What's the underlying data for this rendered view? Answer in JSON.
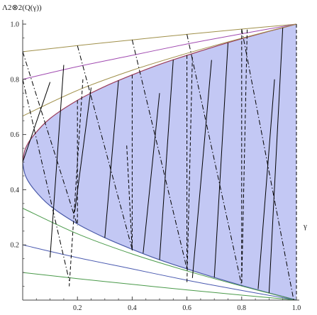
{
  "chart_data": {
    "type": "line",
    "ylabel": "Λ2⊗2(Q(γ))",
    "xlabel": "γ",
    "xlim": [
      0,
      1
    ],
    "ylim": [
      0,
      1
    ],
    "x_ticks": [
      "0.2",
      "0.4",
      "0.6",
      "0.8",
      "1.0"
    ],
    "y_ticks": [
      "0.2",
      "0.4",
      "0.6",
      "0.8",
      "1.0"
    ],
    "grid": false,
    "legend": "none",
    "colors": {
      "region_fill": "#c3c8f4",
      "upper_boundary": "#9a3c5a",
      "lower_boundary": "#4a5aa8",
      "olive": "#a0904a",
      "purple": "#a04ab0",
      "green": "#4a9a4a",
      "blue": "#4a5ab0",
      "black": "#000000"
    },
    "region": {
      "description_free": true,
      "upper_curve": [
        [
          0,
          0.5
        ],
        [
          0.01,
          0.549
        ],
        [
          0.04,
          0.597
        ],
        [
          0.1,
          0.658
        ],
        [
          0.2,
          0.724
        ],
        [
          0.3,
          0.774
        ],
        [
          0.4,
          0.816
        ],
        [
          0.5,
          0.854
        ],
        [
          0.6,
          0.887
        ],
        [
          0.7,
          0.918
        ],
        [
          0.8,
          0.947
        ],
        [
          0.9,
          0.974
        ],
        [
          1.0,
          1.0
        ]
      ],
      "lower_curve": [
        [
          0,
          0.5
        ],
        [
          0.01,
          0.451
        ],
        [
          0.04,
          0.403
        ],
        [
          0.1,
          0.342
        ],
        [
          0.2,
          0.276
        ],
        [
          0.3,
          0.226
        ],
        [
          0.4,
          0.184
        ],
        [
          0.5,
          0.146
        ],
        [
          0.6,
          0.113
        ],
        [
          0.7,
          0.082
        ],
        [
          0.8,
          0.053
        ],
        [
          0.9,
          0.026
        ],
        [
          1.0,
          0.0
        ]
      ]
    },
    "series": [
      {
        "color": "olive",
        "x": [
          0,
          0.2,
          0.4,
          0.6,
          0.8,
          1.0
        ],
        "values": [
          0.9,
          0.922,
          0.943,
          0.963,
          0.982,
          1.0
        ]
      },
      {
        "color": "purple",
        "x": [
          0,
          0.2,
          0.4,
          0.6,
          0.8,
          1.0
        ],
        "values": [
          0.8,
          0.846,
          0.887,
          0.928,
          0.965,
          1.0
        ]
      },
      {
        "color": "olive",
        "x": [
          0,
          0.2,
          0.4,
          0.6,
          0.8,
          1.0
        ],
        "values": [
          0.667,
          0.76,
          0.833,
          0.894,
          0.949,
          1.0
        ]
      },
      {
        "color": "green",
        "x": [
          0,
          0.2,
          0.4,
          0.6,
          0.8,
          1.0
        ],
        "values": [
          0.333,
          0.24,
          0.167,
          0.106,
          0.051,
          0.0
        ]
      },
      {
        "color": "blue",
        "x": [
          0,
          0.2,
          0.4,
          0.6,
          0.8,
          1.0
        ],
        "values": [
          0.2,
          0.154,
          0.113,
          0.072,
          0.035,
          0.0
        ]
      },
      {
        "color": "green",
        "x": [
          0,
          0.2,
          0.4,
          0.6,
          0.8,
          1.0
        ],
        "values": [
          0.1,
          0.078,
          0.057,
          0.037,
          0.018,
          0.0
        ]
      }
    ],
    "chords": [
      {
        "style": "solid",
        "x1": 0.1,
        "y1": 0.154,
        "x2": 0.15,
        "y2": 0.852
      },
      {
        "style": "solid",
        "x1": 0.3,
        "y1": 0.226,
        "x2": 0.35,
        "y2": 0.796
      },
      {
        "style": "solid",
        "x1": 0.5,
        "y1": 0.146,
        "x2": 0.55,
        "y2": 0.871
      },
      {
        "style": "solid",
        "x1": 0.7,
        "y1": 0.082,
        "x2": 0.75,
        "y2": 0.932
      },
      {
        "style": "solid",
        "x1": 0.9,
        "y1": 0.026,
        "x2": 0.95,
        "y2": 0.987
      },
      {
        "style": "solid",
        "x1": 0.0,
        "y1": 0.5,
        "x2": 0.1,
        "y2": 0.79
      },
      {
        "style": "solid",
        "x1": 0.19,
        "y1": 0.32,
        "x2": 0.25,
        "y2": 0.77
      },
      {
        "style": "solid",
        "x1": 0.44,
        "y1": 0.17,
        "x2": 0.5,
        "y2": 0.75
      },
      {
        "style": "solid",
        "x1": 0.62,
        "y1": 0.08,
        "x2": 0.69,
        "y2": 0.87
      },
      {
        "style": "solid",
        "x1": 0.86,
        "y1": 0.04,
        "x2": 0.92,
        "y2": 0.8
      },
      {
        "style": "dashdot",
        "x1": 0.0,
        "y1": 0.9,
        "x2": 0.2,
        "y2": 0.27
      },
      {
        "style": "dashdot",
        "x1": 0.2,
        "y1": 0.922,
        "x2": 0.4,
        "y2": 0.184
      },
      {
        "style": "dashdot",
        "x1": 0.4,
        "y1": 0.943,
        "x2": 0.6,
        "y2": 0.113
      },
      {
        "style": "dashdot",
        "x1": 0.6,
        "y1": 0.963,
        "x2": 0.8,
        "y2": 0.053
      },
      {
        "style": "dashdot",
        "x1": 0.8,
        "y1": 0.982,
        "x2": 0.99,
        "y2": 0.0
      },
      {
        "style": "dashdot",
        "x1": 0.0,
        "y1": 0.8,
        "x2": 0.17,
        "y2": 0.07
      },
      {
        "style": "dashed",
        "x1": 0.0,
        "y1": 0.65,
        "x2": 0.0,
        "y2": 0.35
      },
      {
        "style": "dashed",
        "x1": 0.2,
        "y1": 0.724,
        "x2": 0.2,
        "y2": 0.276
      },
      {
        "style": "dashed",
        "x1": 0.4,
        "y1": 0.816,
        "x2": 0.4,
        "y2": 0.184
      },
      {
        "style": "dashed",
        "x1": 0.6,
        "y1": 0.887,
        "x2": 0.6,
        "y2": 0.113
      },
      {
        "style": "dashed",
        "x1": 0.8,
        "y1": 0.98,
        "x2": 0.8,
        "y2": 0.053
      },
      {
        "style": "dashed",
        "x1": 1.0,
        "y1": 1.0,
        "x2": 1.0,
        "y2": 0.0
      },
      {
        "style": "dashed",
        "x1": 0.22,
        "y1": 0.8,
        "x2": 0.17,
        "y2": 0.05
      },
      {
        "style": "dashed",
        "x1": 0.38,
        "y1": 0.56,
        "x2": 0.4,
        "y2": 0.18
      },
      {
        "style": "dashed",
        "x1": 0.62,
        "y1": 0.88,
        "x2": 0.6,
        "y2": 0.06
      },
      {
        "style": "dashed",
        "x1": 0.82,
        "y1": 0.98,
        "x2": 0.8,
        "y2": 0.06
      }
    ]
  }
}
